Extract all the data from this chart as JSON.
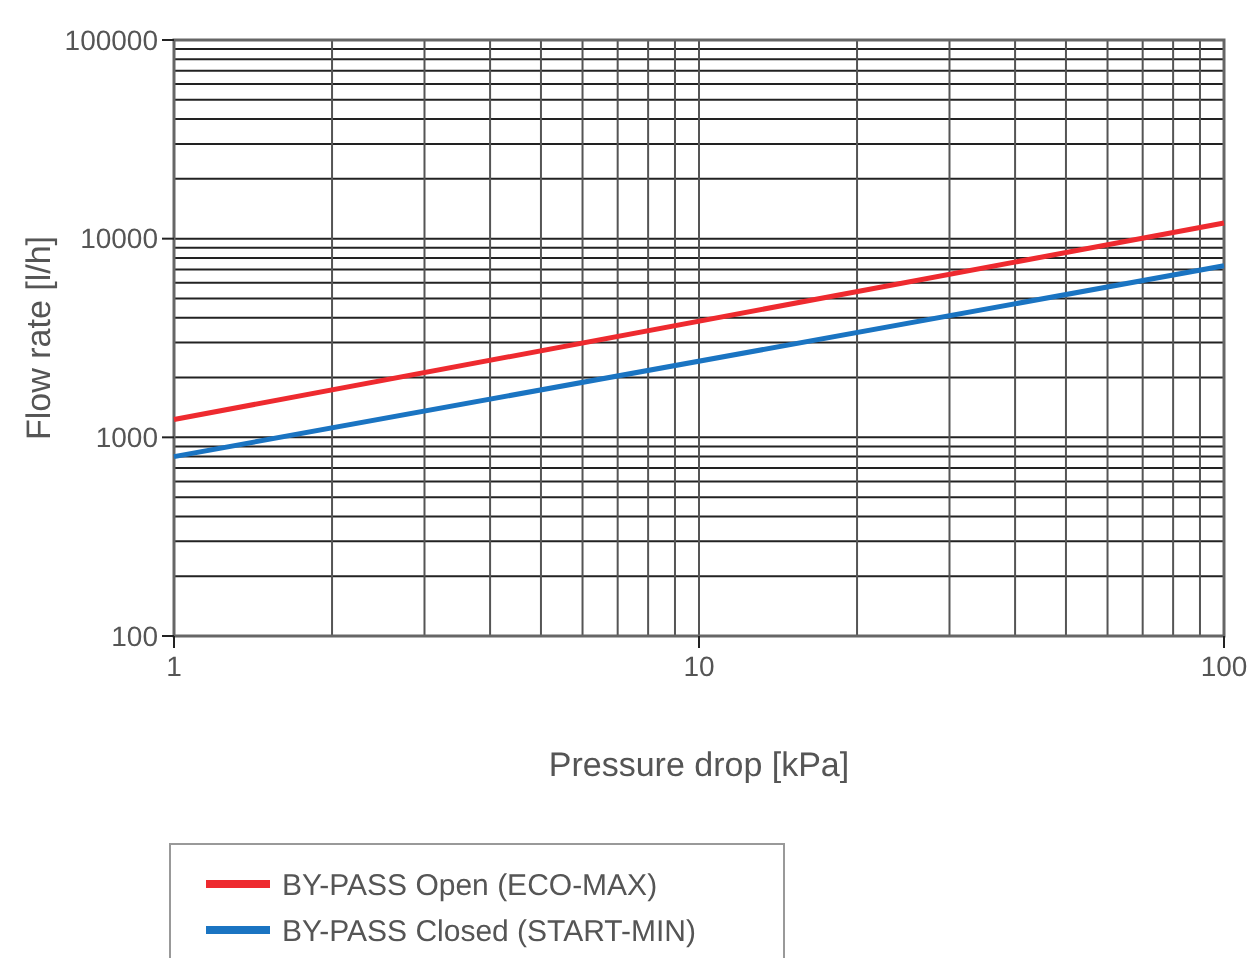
{
  "chart_data": {
    "type": "line",
    "xlabel": "Pressure drop [kPa]",
    "ylabel": "Flow rate [l/h]",
    "x": [
      1,
      100
    ],
    "series": [
      {
        "name": "BY-PASS Open (ECO-MAX)",
        "color": "#ee2a2f",
        "values": [
          1230,
          12000
        ]
      },
      {
        "name": "BY-PASS Closed (START-MIN)",
        "color": "#1a74c2",
        "values": [
          800,
          7300
        ]
      }
    ],
    "xlim": [
      1,
      100
    ],
    "ylim": [
      100,
      100000
    ],
    "xticks": [
      1,
      10,
      100
    ],
    "yticks": [
      100,
      1000,
      10000,
      100000
    ],
    "log": "xy",
    "grid": true,
    "legend": "bottom left",
    "marker": "none",
    "line_style": "solid"
  }
}
